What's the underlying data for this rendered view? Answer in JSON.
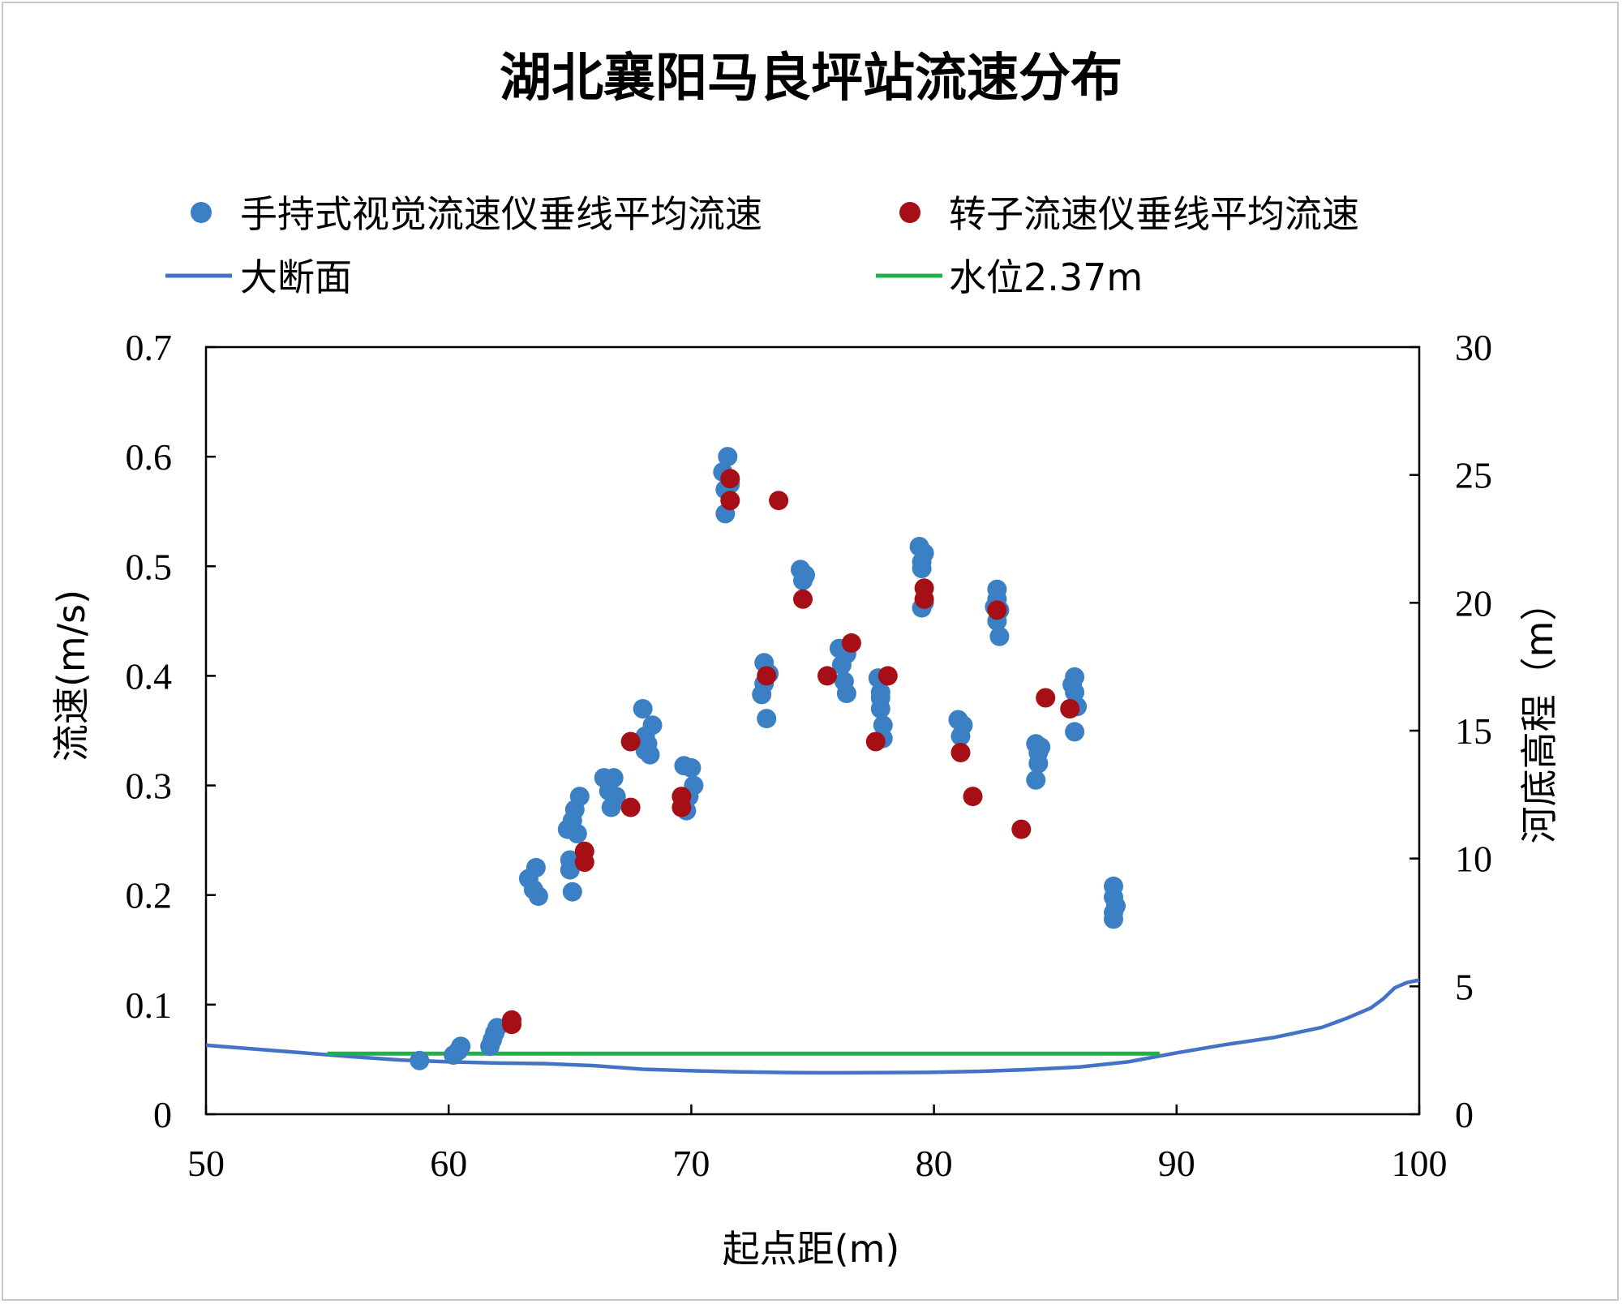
{
  "chart_data": {
    "type": "scatter",
    "title": "湖北襄阳马良坪站流速分布",
    "xlabel": "起点距(m)",
    "ylabel": "流速(m/s)",
    "y2label": "河底高程（m）",
    "xlim": [
      50,
      100
    ],
    "ylim": [
      0,
      0.7
    ],
    "y2lim": [
      0,
      30
    ],
    "xticks": [
      "50",
      "60",
      "70",
      "80",
      "90",
      "100"
    ],
    "yticks": [
      "0",
      "0.1",
      "0.2",
      "0.3",
      "0.4",
      "0.5",
      "0.6",
      "0.7"
    ],
    "y2ticks": [
      "0",
      "5",
      "10",
      "15",
      "20",
      "25",
      "30"
    ],
    "legend": {
      "position": "top",
      "entries": [
        "手持式视觉流速仪垂线平均流速",
        "转子流速仪垂线平均流速",
        "大断面",
        "水位2.37m"
      ]
    },
    "colors": {
      "visual": "#3b7fc4",
      "rotor": "#a50f15",
      "section": "#4472c4",
      "water": "#1db34a",
      "axis": "#000000"
    },
    "series": [
      {
        "name": "手持式视觉流速仪垂线平均流速",
        "kind": "scatter",
        "axis": "left",
        "points": [
          [
            58.8,
            0.049
          ],
          [
            60.2,
            0.054
          ],
          [
            60.4,
            0.058
          ],
          [
            60.5,
            0.062
          ],
          [
            61.7,
            0.062
          ],
          [
            61.8,
            0.068
          ],
          [
            61.9,
            0.074
          ],
          [
            62.0,
            0.079
          ],
          [
            63.3,
            0.215
          ],
          [
            63.5,
            0.205
          ],
          [
            63.6,
            0.225
          ],
          [
            63.7,
            0.199
          ],
          [
            64.9,
            0.26
          ],
          [
            65.0,
            0.232
          ],
          [
            65.0,
            0.223
          ],
          [
            65.1,
            0.203
          ],
          [
            65.1,
            0.268
          ],
          [
            65.2,
            0.278
          ],
          [
            65.3,
            0.256
          ],
          [
            65.4,
            0.29
          ],
          [
            66.4,
            0.307
          ],
          [
            66.6,
            0.295
          ],
          [
            66.7,
            0.28
          ],
          [
            66.8,
            0.307
          ],
          [
            66.9,
            0.29
          ],
          [
            68.0,
            0.37
          ],
          [
            68.1,
            0.345
          ],
          [
            68.1,
            0.332
          ],
          [
            68.2,
            0.338
          ],
          [
            68.3,
            0.328
          ],
          [
            68.4,
            0.355
          ],
          [
            69.7,
            0.318
          ],
          [
            69.8,
            0.277
          ],
          [
            69.9,
            0.29
          ],
          [
            70.0,
            0.316
          ],
          [
            70.1,
            0.3
          ],
          [
            71.3,
            0.586
          ],
          [
            71.4,
            0.57
          ],
          [
            71.4,
            0.548
          ],
          [
            71.5,
            0.6
          ],
          [
            71.6,
            0.575
          ],
          [
            72.9,
            0.383
          ],
          [
            73.0,
            0.412
          ],
          [
            73.0,
            0.393
          ],
          [
            73.1,
            0.361
          ],
          [
            73.2,
            0.402
          ],
          [
            74.5,
            0.497
          ],
          [
            74.6,
            0.487
          ],
          [
            74.7,
            0.492
          ],
          [
            76.1,
            0.425
          ],
          [
            76.2,
            0.41
          ],
          [
            76.3,
            0.395
          ],
          [
            76.4,
            0.384
          ],
          [
            76.4,
            0.42
          ],
          [
            77.7,
            0.398
          ],
          [
            77.8,
            0.385
          ],
          [
            77.8,
            0.37
          ],
          [
            77.9,
            0.355
          ],
          [
            77.9,
            0.343
          ],
          [
            77.8,
            0.38
          ],
          [
            79.4,
            0.518
          ],
          [
            79.5,
            0.504
          ],
          [
            79.5,
            0.498
          ],
          [
            79.6,
            0.512
          ],
          [
            79.5,
            0.462
          ],
          [
            79.6,
            0.467
          ],
          [
            81.0,
            0.36
          ],
          [
            81.1,
            0.345
          ],
          [
            81.2,
            0.355
          ],
          [
            82.6,
            0.479
          ],
          [
            82.6,
            0.47
          ],
          [
            82.7,
            0.46
          ],
          [
            82.6,
            0.45
          ],
          [
            82.7,
            0.436
          ],
          [
            82.5,
            0.463
          ],
          [
            84.2,
            0.338
          ],
          [
            84.3,
            0.33
          ],
          [
            84.3,
            0.32
          ],
          [
            84.2,
            0.305
          ],
          [
            84.4,
            0.335
          ],
          [
            85.8,
            0.399
          ],
          [
            85.8,
            0.385
          ],
          [
            85.9,
            0.372
          ],
          [
            85.8,
            0.349
          ],
          [
            85.7,
            0.392
          ],
          [
            87.4,
            0.208
          ],
          [
            87.4,
            0.198
          ],
          [
            87.5,
            0.19
          ],
          [
            87.4,
            0.184
          ],
          [
            87.4,
            0.178
          ]
        ]
      },
      {
        "name": "转子流速仪垂线平均流速",
        "kind": "scatter",
        "axis": "left",
        "points": [
          [
            62.6,
            0.082
          ],
          [
            62.6,
            0.086
          ],
          [
            65.6,
            0.23
          ],
          [
            65.6,
            0.24
          ],
          [
            67.5,
            0.28
          ],
          [
            67.5,
            0.34
          ],
          [
            69.6,
            0.28
          ],
          [
            69.6,
            0.29
          ],
          [
            71.6,
            0.56
          ],
          [
            71.6,
            0.58
          ],
          [
            73.1,
            0.4
          ],
          [
            73.6,
            0.56
          ],
          [
            74.6,
            0.47
          ],
          [
            75.6,
            0.4
          ],
          [
            76.6,
            0.43
          ],
          [
            77.6,
            0.34
          ],
          [
            78.1,
            0.4
          ],
          [
            79.6,
            0.47
          ],
          [
            79.6,
            0.48
          ],
          [
            81.1,
            0.33
          ],
          [
            81.6,
            0.29
          ],
          [
            82.6,
            0.46
          ],
          [
            83.6,
            0.26
          ],
          [
            84.6,
            0.38
          ],
          [
            85.6,
            0.37
          ]
        ]
      },
      {
        "name": "大断面",
        "kind": "line",
        "axis": "right",
        "points": [
          [
            50,
            2.7
          ],
          [
            52,
            2.55
          ],
          [
            54,
            2.4
          ],
          [
            56,
            2.25
          ],
          [
            58,
            2.12
          ],
          [
            60,
            2.05
          ],
          [
            62,
            2.0
          ],
          [
            64,
            1.98
          ],
          [
            66,
            1.9
          ],
          [
            68,
            1.76
          ],
          [
            70,
            1.7
          ],
          [
            72,
            1.66
          ],
          [
            74,
            1.63
          ],
          [
            76,
            1.62
          ],
          [
            78,
            1.63
          ],
          [
            80,
            1.64
          ],
          [
            82,
            1.68
          ],
          [
            84,
            1.75
          ],
          [
            86,
            1.85
          ],
          [
            88,
            2.05
          ],
          [
            90,
            2.4
          ],
          [
            92,
            2.72
          ],
          [
            94,
            3.0
          ],
          [
            96,
            3.4
          ],
          [
            97,
            3.75
          ],
          [
            98,
            4.15
          ],
          [
            98.5,
            4.5
          ],
          [
            99,
            4.95
          ],
          [
            99.5,
            5.15
          ],
          [
            100,
            5.25
          ]
        ]
      },
      {
        "name": "水位2.37m",
        "kind": "line",
        "axis": "right",
        "points": [
          [
            55,
            2.37
          ],
          [
            89.3,
            2.37
          ]
        ]
      }
    ]
  }
}
